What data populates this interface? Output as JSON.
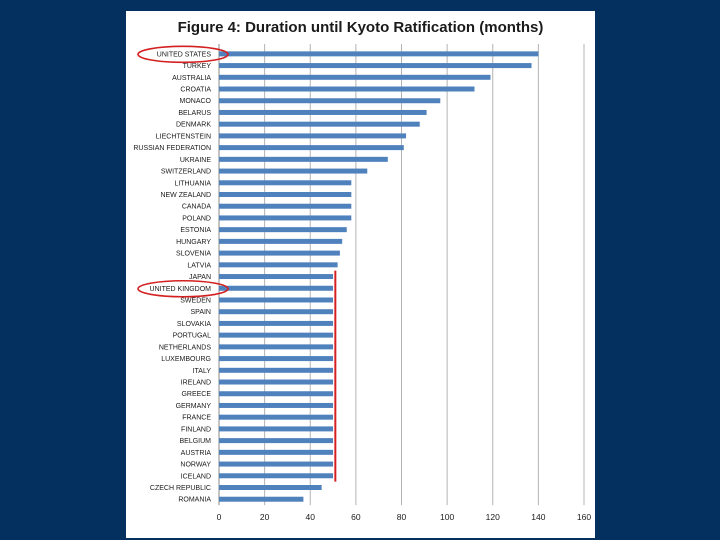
{
  "chart_data": {
    "type": "bar",
    "orientation": "horizontal",
    "title": "Figure 4: Duration until Kyoto Ratification (months)",
    "xlabel": "",
    "ylabel": "",
    "xlim": [
      0,
      160
    ],
    "x_ticks": [
      0,
      20,
      40,
      60,
      80,
      100,
      120,
      140,
      160
    ],
    "grid": "vertical",
    "categories": [
      "UNITED STATES",
      "TURKEY",
      "AUSTRALIA",
      "CROATIA",
      "MONACO",
      "BELARUS",
      "DENMARK",
      "LIECHTENSTEIN",
      "RUSSIAN FEDERATION",
      "UKRAINE",
      "SWITZERLAND",
      "LITHUANIA",
      "NEW ZEALAND",
      "CANADA",
      "POLAND",
      "ESTONIA",
      "HUNGARY",
      "SLOVENIA",
      "LATVIA",
      "JAPAN",
      "UNITED KINGDOM",
      "SWEDEN",
      "SPAIN",
      "SLOVAKIA",
      "PORTUGAL",
      "NETHERLANDS",
      "LUXEMBOURG",
      "ITALY",
      "IRELAND",
      "GREECE",
      "GERMANY",
      "FRANCE",
      "FINLAND",
      "BELGIUM",
      "AUSTRIA",
      "NORWAY",
      "ICELAND",
      "CZECH REPUBLIC",
      "ROMANIA"
    ],
    "values": [
      140,
      137,
      119,
      112,
      97,
      91,
      88,
      82,
      81,
      74,
      65,
      58,
      58,
      58,
      58,
      56,
      54,
      53,
      52,
      50,
      50,
      50,
      50,
      50,
      50,
      50,
      50,
      50,
      50,
      50,
      50,
      50,
      50,
      50,
      50,
      50,
      50,
      45,
      37
    ],
    "bar_color": "#4f81bd",
    "annotations": {
      "circled_labels": [
        "UNITED STATES",
        "UNITED KINGDOM"
      ],
      "reference_line": {
        "x": 51,
        "from": "JAPAN",
        "to": "ICELAND",
        "color": "#d42020"
      }
    }
  }
}
